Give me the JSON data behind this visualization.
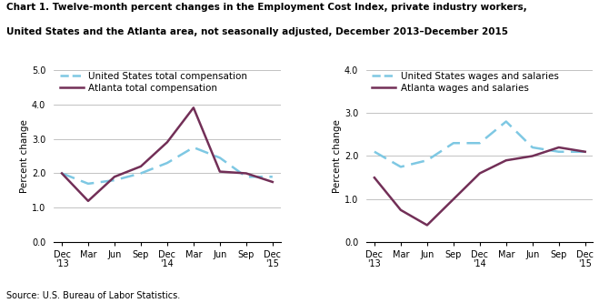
{
  "title_line1": "Chart 1. Twelve-month percent changes in the Employment Cost Index, private industry workers,",
  "title_line2": "United States and the Atlanta area, not seasonally adjusted, December 2013–December 2015",
  "source": "Source: U.S. Bureau of Labor Statistics.",
  "x_labels": [
    "Dec\n'13",
    "Mar",
    "Jun",
    "Sep",
    "Dec\n'14",
    "Mar",
    "Jun",
    "Sep",
    "Dec\n'15"
  ],
  "chart1": {
    "ylabel": "Percent change",
    "ylim": [
      0.0,
      5.0
    ],
    "yticks": [
      0.0,
      1.0,
      2.0,
      3.0,
      4.0,
      5.0
    ],
    "us_label": "United States total compensation",
    "atl_label": "Atlanta total compensation",
    "us_values": [
      2.0,
      1.7,
      1.8,
      2.0,
      2.3,
      2.75,
      2.45,
      1.9,
      1.9
    ],
    "atl_values": [
      2.0,
      1.2,
      1.9,
      2.2,
      2.9,
      3.9,
      2.05,
      2.0,
      1.75
    ]
  },
  "chart2": {
    "ylabel": "Percent change",
    "ylim": [
      0.0,
      4.0
    ],
    "yticks": [
      0.0,
      1.0,
      2.0,
      3.0,
      4.0
    ],
    "us_label": "United States wages and salaries",
    "atl_label": "Atlanta wages and salaries",
    "us_values": [
      2.1,
      1.75,
      1.9,
      2.3,
      2.3,
      2.8,
      2.2,
      2.1,
      2.1
    ],
    "atl_values": [
      1.5,
      0.75,
      0.4,
      1.0,
      1.6,
      1.9,
      2.0,
      2.2,
      2.1
    ]
  },
  "us_color": "#7ec8e3",
  "atl_color": "#722f57",
  "linewidth": 1.8,
  "title_fontsize": 7.5,
  "axis_label_fontsize": 7.5,
  "tick_fontsize": 7.0,
  "legend_fontsize": 7.5,
  "source_fontsize": 7.0,
  "background_color": "#ffffff",
  "grid_color": "#aaaaaa"
}
